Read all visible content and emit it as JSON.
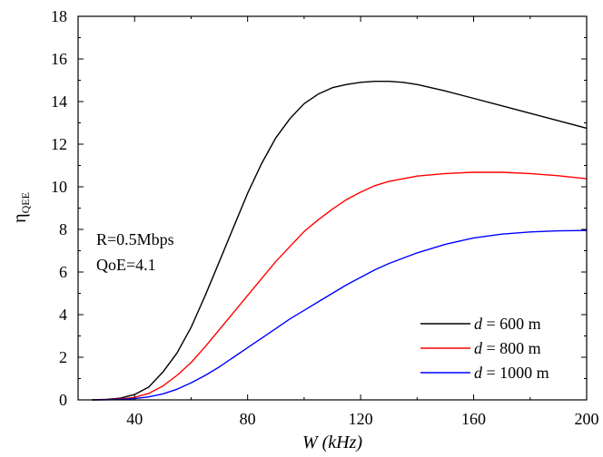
{
  "chart_data": {
    "type": "line",
    "xlabel": {
      "var": "W",
      "unit": "(kHz)"
    },
    "ylabel": {
      "base": "η",
      "sub": "QEE"
    },
    "xlim": [
      20,
      200
    ],
    "ylim": [
      0,
      18
    ],
    "xticks": [
      40,
      80,
      120,
      160,
      200
    ],
    "yticks": [
      0,
      2,
      4,
      6,
      8,
      10,
      12,
      14,
      16,
      18
    ],
    "grid": false,
    "legend_position": "bottom-right",
    "annotations": [
      "R=0.5Mbps",
      "QoE=4.1"
    ],
    "series": [
      {
        "var": "d",
        "label_rest": "= 600 m",
        "color": "#000000",
        "x": [
          25,
          30,
          35,
          40,
          45,
          50,
          55,
          60,
          65,
          70,
          75,
          80,
          85,
          90,
          95,
          100,
          105,
          110,
          115,
          120,
          125,
          130,
          135,
          140,
          150,
          160,
          170,
          180,
          190,
          200
        ],
        "y": [
          0,
          0.02,
          0.08,
          0.25,
          0.6,
          1.3,
          2.2,
          3.4,
          4.9,
          6.5,
          8.1,
          9.7,
          11.1,
          12.3,
          13.2,
          13.9,
          14.35,
          14.65,
          14.8,
          14.9,
          14.95,
          14.95,
          14.9,
          14.8,
          14.5,
          14.15,
          13.8,
          13.45,
          13.1,
          12.75
        ]
      },
      {
        "var": "d",
        "label_rest": "= 800 m",
        "color": "#ff0000",
        "x": [
          25,
          30,
          35,
          40,
          45,
          50,
          55,
          60,
          65,
          70,
          75,
          80,
          85,
          90,
          95,
          100,
          105,
          110,
          115,
          120,
          125,
          130,
          140,
          150,
          160,
          170,
          180,
          190,
          200
        ],
        "y": [
          0,
          0.01,
          0.04,
          0.12,
          0.3,
          0.65,
          1.15,
          1.75,
          2.5,
          3.3,
          4.1,
          4.9,
          5.7,
          6.5,
          7.2,
          7.9,
          8.45,
          8.95,
          9.4,
          9.75,
          10.05,
          10.25,
          10.5,
          10.62,
          10.68,
          10.68,
          10.62,
          10.52,
          10.38
        ]
      },
      {
        "var": "d",
        "label_rest": "= 1000 m",
        "color": "#0000ff",
        "x": [
          25,
          30,
          35,
          40,
          45,
          50,
          55,
          60,
          65,
          70,
          75,
          80,
          85,
          90,
          95,
          100,
          105,
          110,
          115,
          120,
          125,
          130,
          140,
          150,
          160,
          170,
          180,
          190,
          200
        ],
        "y": [
          0,
          0.005,
          0.02,
          0.06,
          0.14,
          0.28,
          0.5,
          0.8,
          1.15,
          1.55,
          2.0,
          2.45,
          2.9,
          3.35,
          3.8,
          4.2,
          4.6,
          5.0,
          5.4,
          5.75,
          6.1,
          6.4,
          6.9,
          7.3,
          7.6,
          7.78,
          7.88,
          7.93,
          7.95
        ]
      }
    ]
  }
}
